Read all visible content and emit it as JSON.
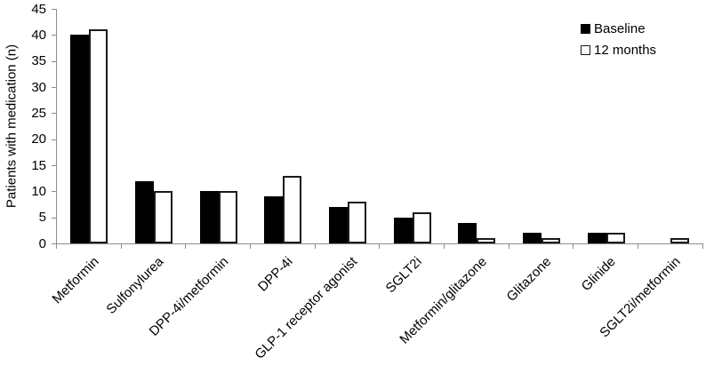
{
  "chart_data": {
    "type": "bar",
    "title": "",
    "xlabel": "",
    "ylabel": "Patients with medication (n)",
    "ylim": [
      0,
      45
    ],
    "yticks": [
      0,
      5,
      10,
      15,
      20,
      25,
      30,
      35,
      40,
      45
    ],
    "grid": false,
    "legend_position": "top-right",
    "x_label_rotation": -45,
    "categories": [
      "Metformin",
      "Sulfonylurea",
      "DPP-4i/metformin",
      "DPP-4i",
      "GLP-1 receptor agonist",
      "SGLT2i",
      "Metformin/glitazone",
      "Glitazone",
      "Glinide",
      "SGLT2i/metformin"
    ],
    "series": [
      {
        "name": "Baseline",
        "fill": "#000000",
        "border": "#000000",
        "values": [
          40,
          12,
          10,
          9,
          7,
          5,
          4,
          2,
          2,
          0
        ]
      },
      {
        "name": "12 months",
        "fill": "#ffffff",
        "border": "#1a1a1a",
        "values": [
          41,
          10,
          10,
          13,
          8,
          6,
          1,
          1,
          2,
          1
        ]
      }
    ],
    "colors": {
      "axis": "#8c8c8c",
      "text": "#000000",
      "background": "#ffffff"
    }
  }
}
